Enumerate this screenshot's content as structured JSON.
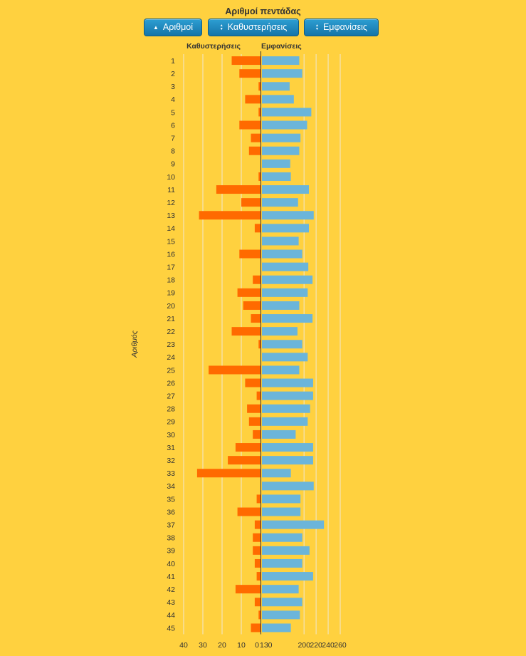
{
  "title": "Αριθμοί πεντάδας",
  "buttons": {
    "numbers": "Αριθμοί",
    "delays": "Καθυστερήσεις",
    "appearances": "Εμφανίσεις"
  },
  "icons": {
    "numbers": "sort-asc-icon",
    "delays": "sort-updown-icon",
    "appearances": "sort-updown-icon"
  },
  "colors": {
    "background": "#FFD13F",
    "delays": "#FF6A00",
    "appearances": "#6BB5DA",
    "button": "#1E88C0",
    "grid": "#F5E0A0"
  },
  "chart_data": {
    "type": "bar",
    "orientation": "horizontal-butterfly",
    "categories": [
      "1",
      "2",
      "3",
      "4",
      "5",
      "6",
      "7",
      "8",
      "9",
      "10",
      "11",
      "12",
      "13",
      "14",
      "15",
      "16",
      "17",
      "18",
      "19",
      "20",
      "21",
      "22",
      "23",
      "24",
      "25",
      "26",
      "27",
      "28",
      "29",
      "30",
      "31",
      "32",
      "33",
      "34",
      "35",
      "36",
      "37",
      "38",
      "39",
      "40",
      "41",
      "42",
      "43",
      "44",
      "45"
    ],
    "ylabel": "Αριθμός",
    "left_header": "Καθυστερήσεις",
    "right_header": "Εμφανίσεις",
    "left_ticks": [
      "40",
      "30",
      "20",
      "10",
      "0"
    ],
    "right_ticks": [
      "130",
      "200",
      "220",
      "240",
      "260"
    ],
    "left_xlim": [
      0,
      40
    ],
    "right_xlim": [
      130,
      260
    ],
    "series": [
      {
        "name": "Καθυστερήσεις",
        "values": [
          15,
          11,
          1,
          8,
          1,
          11,
          5,
          6,
          0,
          1,
          23,
          10,
          32,
          3,
          0,
          11,
          0,
          4,
          12,
          9,
          5,
          15,
          1,
          0,
          27,
          8,
          2,
          7,
          6,
          4,
          13,
          17,
          33,
          0,
          2,
          12,
          3,
          4,
          4,
          3,
          2,
          13,
          3,
          1,
          5
        ]
      },
      {
        "name": "Εμφανίσεις",
        "values": [
          192,
          197,
          176,
          183,
          212,
          205,
          194,
          192,
          177,
          178,
          208,
          190,
          216,
          208,
          191,
          197,
          207,
          214,
          206,
          192,
          214,
          189,
          197,
          206,
          192,
          215,
          215,
          210,
          206,
          186,
          215,
          215,
          178,
          216,
          194,
          194,
          233,
          197,
          209,
          197,
          215,
          191,
          197,
          193,
          178
        ]
      }
    ],
    "grid": true
  }
}
